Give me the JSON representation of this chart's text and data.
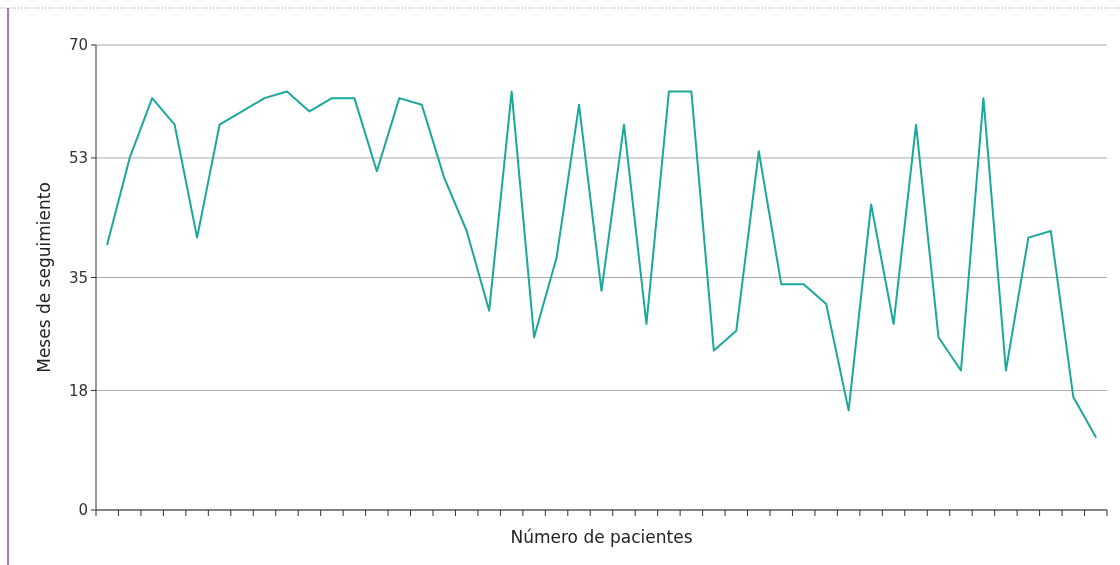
{
  "chart_data": {
    "type": "line",
    "xlabel": "Número de pacientes",
    "ylabel": "Meses de seguimiento",
    "categories": [
      null,
      null,
      null,
      null,
      null,
      null,
      null,
      null,
      null,
      null,
      null,
      null,
      null,
      null,
      null,
      null,
      null,
      null,
      null,
      null,
      null,
      null,
      null,
      null,
      null,
      null,
      null,
      null,
      null,
      null,
      null,
      null,
      null,
      null,
      null,
      null,
      null,
      null,
      null,
      null,
      null,
      null,
      null,
      null,
      null
    ],
    "series": [
      {
        "color": "#1aa89a",
        "values": [
          40,
          53,
          62,
          58,
          41,
          58,
          60,
          62,
          63,
          60,
          62,
          62,
          51,
          62,
          61,
          50,
          42,
          30,
          63,
          26,
          38,
          61,
          33,
          58,
          28,
          63,
          63,
          24,
          27,
          54,
          34,
          34,
          31,
          15,
          46,
          28,
          58,
          26,
          21,
          62,
          21,
          41,
          42,
          17,
          11
        ]
      }
    ],
    "ylim": [
      0,
      70
    ],
    "yticks": [
      0,
      18,
      35,
      53,
      70
    ],
    "grid": "y",
    "marker": "none",
    "line_style": "solid",
    "tick_labels": "y"
  }
}
